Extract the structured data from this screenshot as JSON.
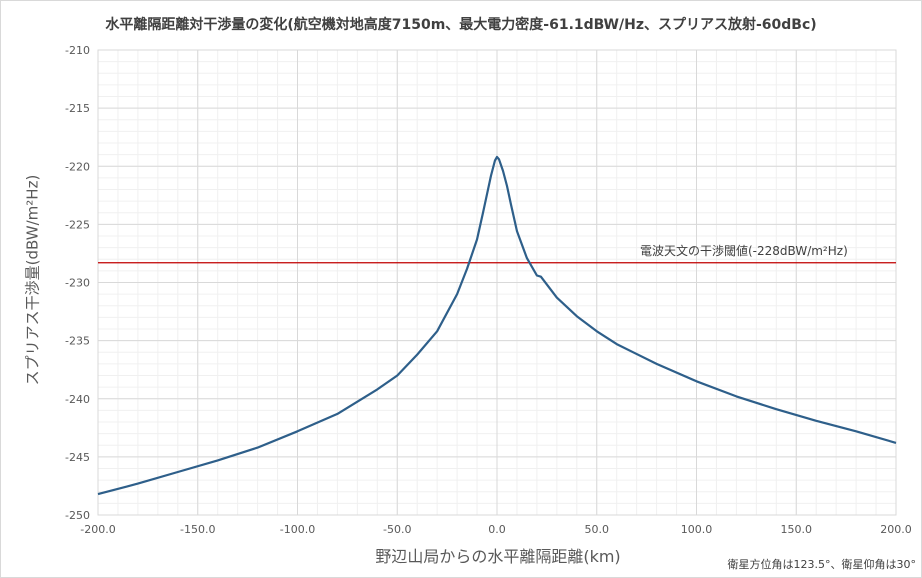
{
  "chart_data": {
    "type": "line",
    "title": "水平離隔距離対干渉量の変化(航空機対地高度7150m、最大電力密度-61.1dBW/Hz、スプリアス放射-60dBc)",
    "xlabel": "野辺山局からの水平離隔距離(km)",
    "ylabel": "スプリアス干渉量(dBW/m²Hz)",
    "xlim": [
      -200,
      200
    ],
    "ylim": [
      -250,
      -210
    ],
    "x_ticks": [
      "-200.0",
      "-150.0",
      "-100.0",
      "-50.0",
      "0.0",
      "50.0",
      "100.0",
      "150.0",
      "200.0"
    ],
    "y_ticks": [
      "-210",
      "-215",
      "-220",
      "-225",
      "-230",
      "-235",
      "-240",
      "-245",
      "-250"
    ],
    "grid": true,
    "series": [
      {
        "color": "#2e5f8a",
        "x": [
          -200,
          -180,
          -160,
          -140,
          -120,
          -100,
          -80,
          -60,
          -50,
          -40,
          -30,
          -20,
          -15,
          -10,
          -7,
          -5,
          -3,
          -1,
          0,
          1,
          3,
          5,
          7,
          10,
          15,
          20,
          22,
          30,
          40,
          50,
          60,
          80,
          100,
          120,
          140,
          160,
          180,
          200
        ],
        "y": [
          -248.2,
          -247.3,
          -246.3,
          -245.3,
          -244.2,
          -242.8,
          -241.3,
          -239.2,
          -238.0,
          -236.2,
          -234.2,
          -231.0,
          -228.8,
          -226.3,
          -224.0,
          -222.4,
          -220.8,
          -219.5,
          -219.2,
          -219.4,
          -220.4,
          -221.7,
          -223.3,
          -225.6,
          -227.9,
          -229.4,
          -229.5,
          -231.3,
          -232.9,
          -234.2,
          -235.3,
          -237.0,
          -238.5,
          -239.8,
          -240.9,
          -241.9,
          -242.8,
          -243.8
        ]
      }
    ],
    "threshold": {
      "value": -228.3,
      "color": "#c00000",
      "label": "電波天文の干渉閾値(-228dBW/m²Hz)"
    }
  },
  "note": "衛星方位角は123.5°、衛星仰角は30°"
}
